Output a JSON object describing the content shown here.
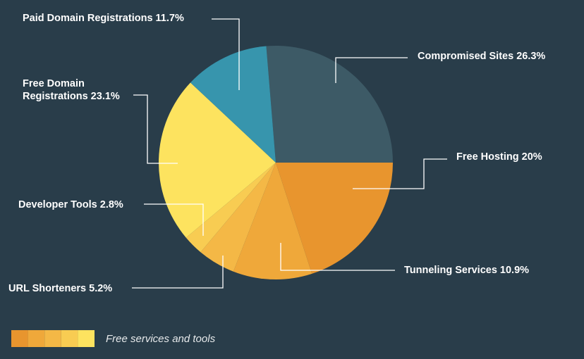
{
  "chart_data": {
    "type": "pie",
    "title": "",
    "slices": [
      {
        "label": "Compromised Sites",
        "value": 26.3,
        "display": "Compromised Sites 26.3%",
        "color": "#3d5a66"
      },
      {
        "label": "Free Hosting",
        "value": 20,
        "display": "Free Hosting 20%",
        "color": "#e8952e"
      },
      {
        "label": "Tunneling Services",
        "value": 10.9,
        "display": "Tunneling Services 10.9%",
        "color": "#efa83a"
      },
      {
        "label": "URL Shorteners",
        "value": 5.2,
        "display": "URL Shorteners 5.2%",
        "color": "#f4b846"
      },
      {
        "label": "Developer Tools",
        "value": 2.8,
        "display": "Developer Tools 2.8%",
        "color": "#f8cc52"
      },
      {
        "label": "Free Domain Registrations",
        "value": 23.1,
        "display_lines": [
          "Free Domain",
          "Registrations 23.1%"
        ],
        "color": "#fde35f"
      },
      {
        "label": "Paid Domain Registrations",
        "value": 11.7,
        "display": "Paid Domain Registrations 11.7%",
        "color": "#3795ad"
      }
    ],
    "legend": {
      "position": "bottom-left",
      "label": "Free services and tools",
      "swatch_colors": [
        "#e8952e",
        "#efa83a",
        "#f4b846",
        "#f8cc52",
        "#fde35f"
      ]
    }
  }
}
